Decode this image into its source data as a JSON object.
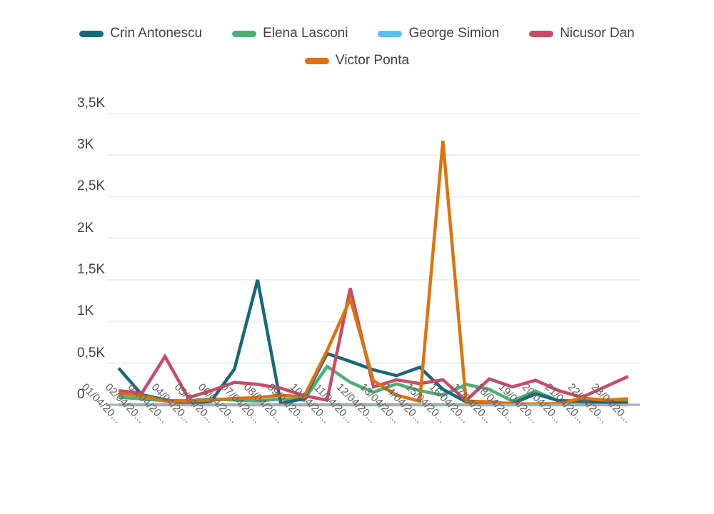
{
  "chart_data": {
    "type": "line",
    "title": "",
    "xlabel": "",
    "ylabel": "",
    "ylim": [
      0,
      3500
    ],
    "grid": "horizontal",
    "legend_position": "top-two-rows",
    "y_ticks": {
      "values": [
        0,
        500,
        1000,
        1500,
        2000,
        2500,
        3000,
        3500
      ],
      "labels": [
        "0",
        "0,5K",
        "1K",
        "1,5K",
        "2K",
        "2,5K",
        "3K",
        "3,5K"
      ]
    },
    "x_labels": [
      "01/04/20...",
      "02/04/20...",
      "03/04/20...",
      "04/04/20...",
      "05/04/20...",
      "06/04/20...",
      "07/04/20...",
      "08/04/20...",
      "09/04/20...",
      "10/04/20...",
      "11/04/20...",
      "12/04/20...",
      "13/04/20...",
      "14/04/20...",
      "15/04/20...",
      "16/04/20...",
      "17/04/20...",
      "18/04/20...",
      "19/04/20...",
      "20/04/20...",
      "21/04/20...",
      "22/04/20...",
      "23/04/20..."
    ],
    "series": [
      {
        "name": "Crin Antonescu",
        "color": "#17697A",
        "values": [
          440,
          120,
          60,
          10,
          45,
          430,
          1500,
          15,
          75,
          615,
          520,
          420,
          350,
          450,
          185,
          35,
          30,
          15,
          130,
          50,
          45,
          25,
          20
        ]
      },
      {
        "name": "Elena Lasconi",
        "color": "#4CAF78",
        "values": [
          90,
          70,
          50,
          50,
          70,
          57,
          45,
          70,
          57,
          460,
          270,
          150,
          250,
          170,
          115,
          245,
          185,
          45,
          165,
          45,
          25,
          15,
          40
        ]
      },
      {
        "name": "George Simion",
        "color": "#58C3F0",
        "values": [
          0,
          0,
          0,
          0,
          0,
          0,
          0,
          0,
          0,
          0,
          0,
          0,
          0,
          0,
          0,
          0,
          0,
          0,
          0,
          0,
          0,
          0,
          0
        ]
      },
      {
        "name": "Nicusor Dan",
        "color": "#CC4A67",
        "values": [
          170,
          140,
          580,
          85,
          170,
          270,
          245,
          200,
          110,
          55,
          1400,
          215,
          300,
          255,
          300,
          50,
          310,
          215,
          295,
          170,
          90,
          215,
          340
        ]
      },
      {
        "name": "Victor Ponta",
        "color": "#DE730D",
        "values": [
          130,
          110,
          45,
          45,
          57,
          77,
          86,
          115,
          95,
          650,
          1270,
          290,
          115,
          45,
          3170,
          45,
          35,
          10,
          10,
          15,
          80,
          57,
          72
        ]
      }
    ]
  },
  "colors": {
    "background": "#FFFFFF",
    "axis_line": "#ACACAC",
    "gridline": "#EFEFEF",
    "y_label_text": "#424242",
    "x_label_text": "#616161",
    "legend_text": "#424242"
  }
}
